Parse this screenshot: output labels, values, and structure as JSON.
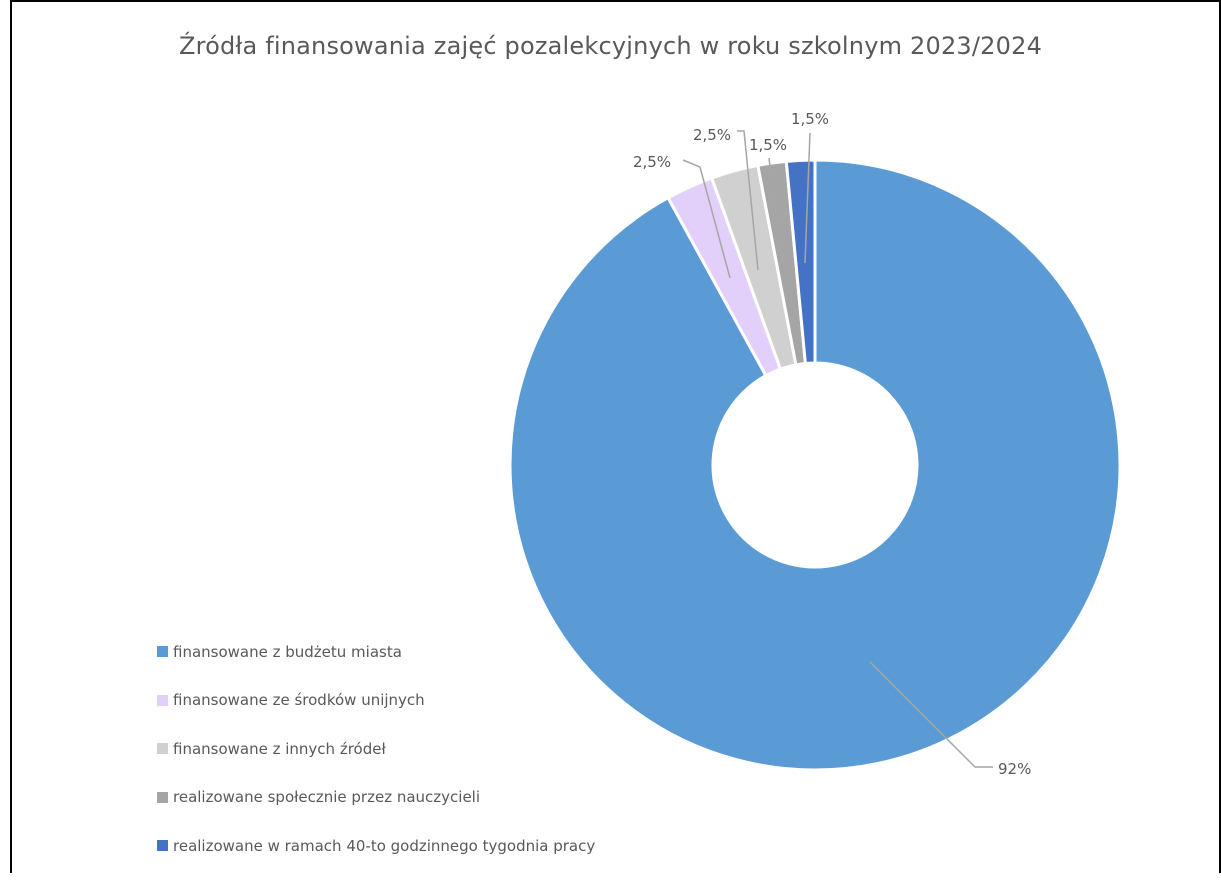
{
  "chart_data": {
    "type": "pie",
    "variant": "doughnut",
    "title": "Źródła finansowania zajęć pozalekcyjnych w roku szkolnym 2023/2024",
    "legend_position": "bottom-left",
    "slices": [
      {
        "label": "finansowane z budżetu miasta",
        "value": 92,
        "value_label": "92%",
        "color": "#5B9BD5"
      },
      {
        "label": "finansowane ze środków unijnych",
        "value": 2.5,
        "value_label": "2,5%",
        "color": "#E2D0FA"
      },
      {
        "label": "finansowane z innych źródeł",
        "value": 2.5,
        "value_label": "2,5%",
        "color": "#D0D0D0"
      },
      {
        "label": "realizowane społecznie przez nauczycieli",
        "value": 1.5,
        "value_label": "1,5%",
        "color": "#A5A5A5"
      },
      {
        "label": "realizowane w ramach 40-to godzinnego tygodnia pracy",
        "value": 1.5,
        "value_label": "1,5%",
        "color": "#4472C4"
      }
    ]
  }
}
